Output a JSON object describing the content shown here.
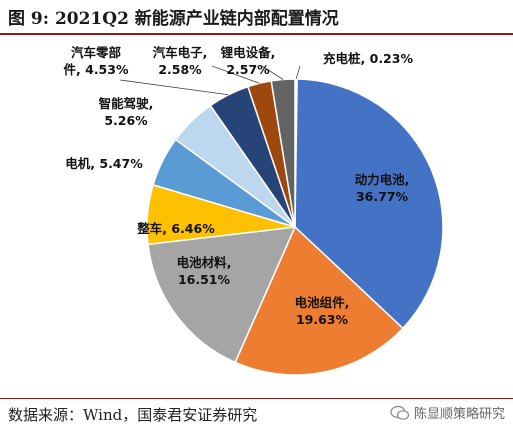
{
  "header": {
    "title": "图 9:  2021Q2 新能源产业链内部配置情况"
  },
  "footer": {
    "source": "数据来源：Wind，国泰君安证券研究",
    "watermark": "陈显顺策略研究"
  },
  "chart_data": {
    "type": "pie",
    "title": "",
    "slices": [
      {
        "name": "充电桩",
        "value": 0.23,
        "label_lines": [
          "充电桩, 0.23%"
        ],
        "color": "#ffffff"
      },
      {
        "name": "动力电池",
        "value": 36.77,
        "label_lines": [
          "动力电池,",
          "36.77%"
        ],
        "color": "#4472c4"
      },
      {
        "name": "电池组件",
        "value": 19.63,
        "label_lines": [
          "电池组件,",
          "19.63%"
        ],
        "color": "#ed7d31"
      },
      {
        "name": "电池材料",
        "value": 16.51,
        "label_lines": [
          "电池材料,",
          "16.51%"
        ],
        "color": "#a5a5a5"
      },
      {
        "name": "整车",
        "value": 6.46,
        "label_lines": [
          "整车, 6.46%"
        ],
        "color": "#ffc000"
      },
      {
        "name": "电机",
        "value": 5.47,
        "label_lines": [
          "电机, 5.47%"
        ],
        "color": "#5b9bd5"
      },
      {
        "name": "智能驾驶",
        "value": 5.26,
        "label_lines": [
          "智能驾驶,",
          "5.26%"
        ],
        "color": "#bdd7ee"
      },
      {
        "name": "汽车零部件",
        "value": 4.53,
        "label_lines": [
          "汽车零部",
          "件, 4.53%"
        ],
        "color": "#264478"
      },
      {
        "name": "汽车电子",
        "value": 2.58,
        "label_lines": [
          "汽车电子,",
          "2.58%"
        ],
        "color": "#9e480e"
      },
      {
        "name": "锂电设备",
        "value": 2.57,
        "label_lines": [
          "锂电设备,",
          "2.57%"
        ],
        "color": "#636363"
      }
    ]
  }
}
